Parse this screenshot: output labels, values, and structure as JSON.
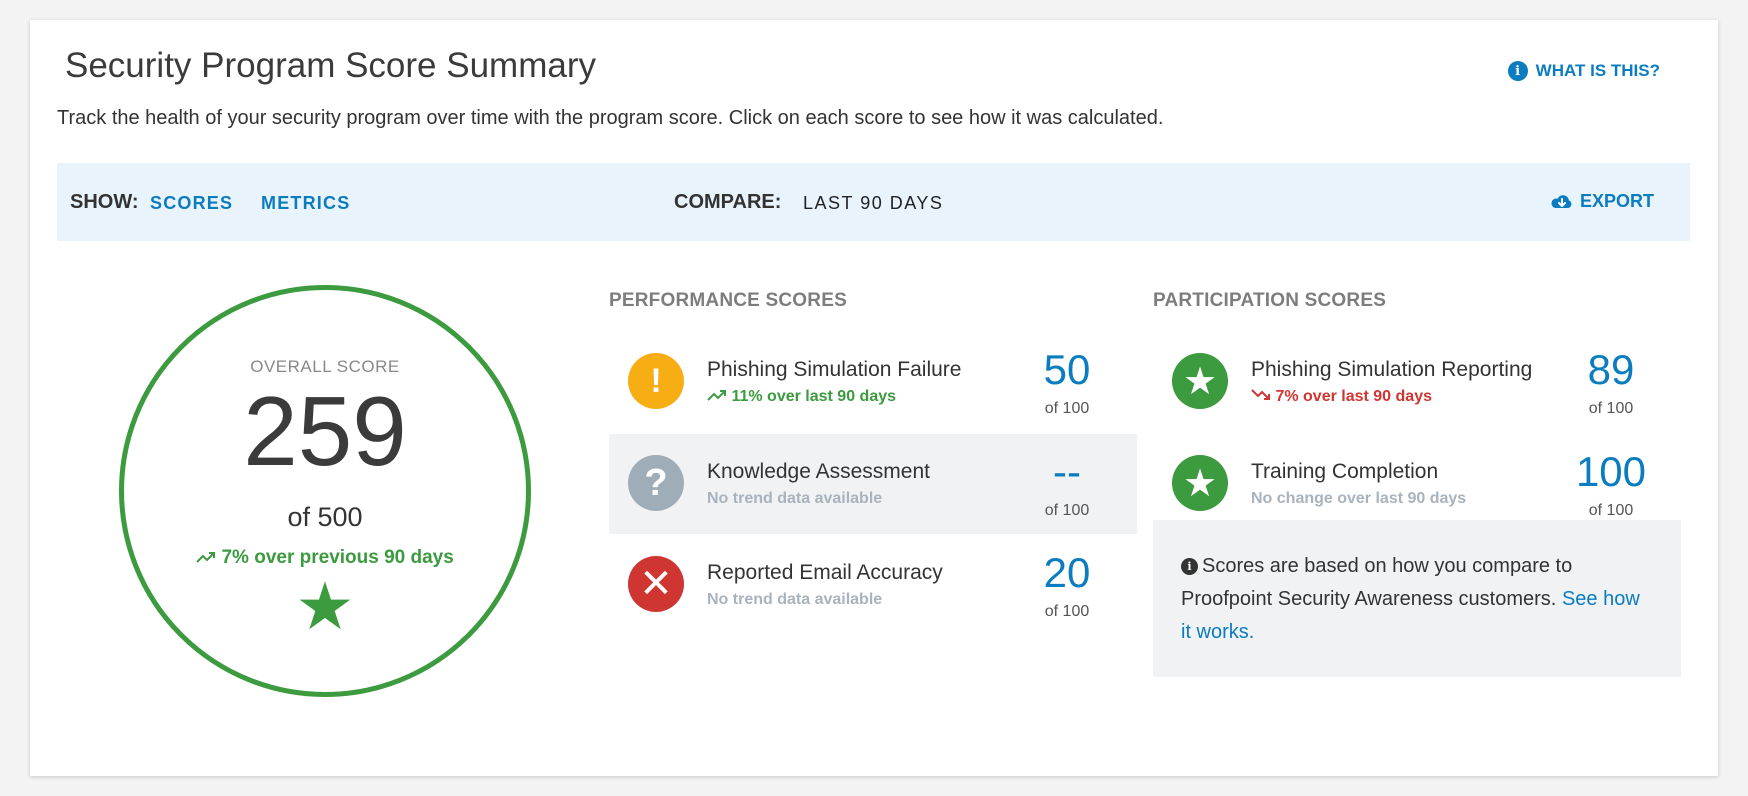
{
  "header": {
    "title": "Security Program Score Summary",
    "subtitle": "Track the health of your security program over time with the program score. Click on each score to see how it was calculated.",
    "help_label": "WHAT IS THIS?"
  },
  "filter_bar": {
    "show_label": "SHOW:",
    "show_options": [
      "SCORES",
      "METRICS"
    ],
    "compare_label": "COMPARE:",
    "compare_value": "LAST 90 DAYS",
    "export_label": "EXPORT"
  },
  "overall": {
    "label": "OVERALL SCORE",
    "value": "259",
    "of": "of 500",
    "trend": "7% over previous 90 days",
    "color": "#3c9a3f"
  },
  "performance": {
    "heading": "PERFORMANCE SCORES",
    "items": [
      {
        "name": "Phishing Simulation Failure",
        "trend": "11% over last 90 days",
        "score": "50",
        "of": "of 100",
        "icon": "exclamation-icon"
      },
      {
        "name": "Knowledge Assessment",
        "trend": "No trend data available",
        "score": "--",
        "of": "of 100",
        "icon": "question-icon"
      },
      {
        "name": "Reported Email Accuracy",
        "trend": "No trend data available",
        "score": "20",
        "of": "of 100",
        "icon": "x-icon"
      }
    ]
  },
  "participation": {
    "heading": "PARTICIPATION SCORES",
    "items": [
      {
        "name": "Phishing Simulation Reporting",
        "trend": "7% over last 90 days",
        "score": "89",
        "of": "of 100",
        "icon": "star-icon"
      },
      {
        "name": "Training Completion",
        "trend": "No change over last 90 days",
        "score": "100",
        "of": "of 100",
        "icon": "star-icon"
      }
    ]
  },
  "note": {
    "text": "Scores are based on how you compare to Proofpoint Security Awareness customers.",
    "link": "See how it works."
  },
  "colors": {
    "accent": "#0b7cbf",
    "positive": "#3c9a3f",
    "negative": "#cf3531",
    "warning": "#f7ad14",
    "neutral": "#9eadb8"
  }
}
